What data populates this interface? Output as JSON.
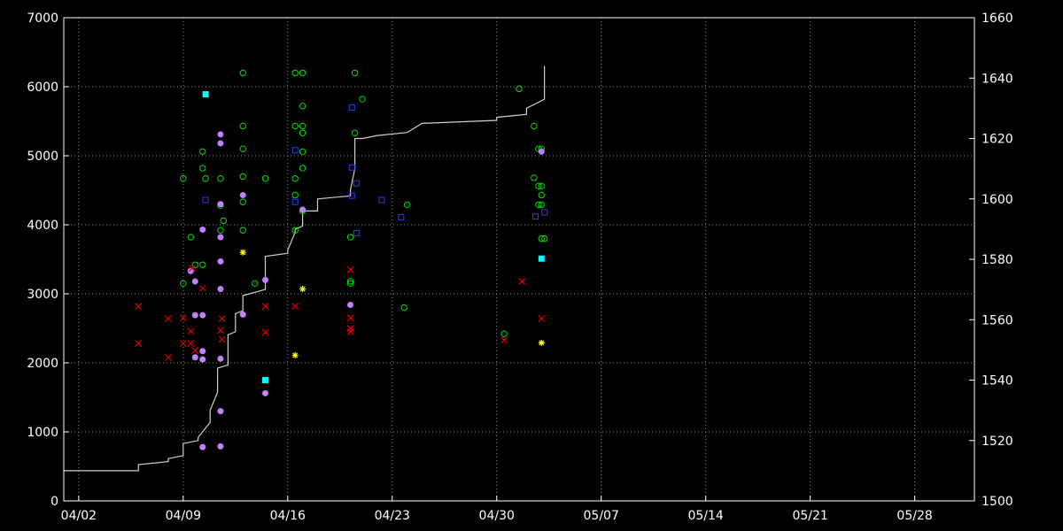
{
  "chart_data": {
    "type": "scatter",
    "title": "",
    "xlabel": "",
    "ylabel": "",
    "y2label": "",
    "background": "#000000",
    "grid": true,
    "legend": "none",
    "x_axis": {
      "type": "date",
      "range": [
        "04/01",
        "06/01"
      ],
      "ticks": [
        "04/02",
        "04/09",
        "04/16",
        "04/23",
        "04/30",
        "05/07",
        "05/14",
        "05/21",
        "05/28"
      ]
    },
    "y_left": {
      "range": [
        0,
        7000
      ],
      "ticks": [
        "0",
        "1000",
        "2000",
        "3000",
        "4000",
        "5000",
        "6000",
        "7000"
      ]
    },
    "y_right": {
      "range": [
        1500,
        1660
      ],
      "ticks": [
        "1500",
        "1520",
        "1540",
        "1560",
        "1580",
        "1600",
        "1620",
        "1640",
        "1660"
      ]
    },
    "rating_line": {
      "axis": "right",
      "color": "#d0d0d0",
      "points": [
        [
          "04/01",
          1510
        ],
        [
          "04/06",
          1510
        ],
        [
          "04/06",
          1512
        ],
        [
          "04/08",
          1513
        ],
        [
          "04/08",
          1514
        ],
        [
          "04/09",
          1515
        ],
        [
          "04/09",
          1519
        ],
        [
          "04/10",
          1520
        ],
        [
          "04/10",
          1521
        ],
        [
          "04/10.8",
          1526
        ],
        [
          "04/10.8",
          1530
        ],
        [
          "04/11.3",
          1536
        ],
        [
          "04/11.3",
          1544
        ],
        [
          "04/12",
          1545
        ],
        [
          "04/12",
          1555
        ],
        [
          "04/12.5",
          1556
        ],
        [
          "04/12.5",
          1562
        ],
        [
          "04/13",
          1563
        ],
        [
          "04/13",
          1568
        ],
        [
          "04/14.5",
          1570
        ],
        [
          "04/14.5",
          1581
        ],
        [
          "04/16",
          1582
        ],
        [
          "04/16",
          1583
        ],
        [
          "04/16.5",
          1589
        ],
        [
          "04/16.5",
          1590
        ],
        [
          "04/17",
          1591
        ],
        [
          "04/17",
          1596
        ],
        [
          "04/18",
          1596
        ],
        [
          "04/18",
          1600
        ],
        [
          "04/20.2",
          1601
        ],
        [
          "04/20.2",
          1603
        ],
        [
          "04/20.5",
          1610
        ],
        [
          "04/20.5",
          1620
        ],
        [
          "04/21",
          1620
        ],
        [
          "04/22",
          1621
        ],
        [
          "04/24",
          1622
        ],
        [
          "04/25",
          1625
        ],
        [
          "04/30",
          1626
        ],
        [
          "04/30",
          1627
        ],
        [
          "05/02",
          1628
        ],
        [
          "05/02",
          1630
        ],
        [
          "05/03.2",
          1633
        ],
        [
          "05/03.2",
          1644
        ]
      ]
    },
    "series": [
      {
        "marker": "open-circle",
        "color": "#00e000",
        "axis": "left",
        "points": [
          [
            "04/13",
            6200
          ],
          [
            "04/16.5",
            6200
          ],
          [
            "04/17",
            6200
          ],
          [
            "04/20.5",
            6200
          ],
          [
            "04/21",
            5820
          ],
          [
            "04/13",
            5430
          ],
          [
            "04/16.5",
            5430
          ],
          [
            "04/17",
            5430
          ],
          [
            "04/20.5",
            5330
          ],
          [
            "04/17",
            5720
          ],
          [
            "04/17",
            5330
          ],
          [
            "04/17",
            5060
          ],
          [
            "04/13",
            5100
          ],
          [
            "04/10.3",
            5060
          ],
          [
            "04/10.3",
            4820
          ],
          [
            "04/17",
            4820
          ],
          [
            "04/09",
            4670
          ],
          [
            "04/10.5",
            4670
          ],
          [
            "04/11.5",
            4670
          ],
          [
            "04/13",
            4700
          ],
          [
            "04/14.5",
            4670
          ],
          [
            "04/16.5",
            4670
          ],
          [
            "04/16.5",
            4430
          ],
          [
            "04/13",
            4330
          ],
          [
            "04/11.5",
            4280
          ],
          [
            "04/11.7",
            4060
          ],
          [
            "04/11.5",
            3920
          ],
          [
            "04/13",
            3920
          ],
          [
            "04/16.5",
            3920
          ],
          [
            "04/17",
            4200
          ],
          [
            "04/09.5",
            3820
          ],
          [
            "04/20.2",
            3820
          ],
          [
            "04/09.8",
            3420
          ],
          [
            "04/10.3",
            3420
          ],
          [
            "04/09",
            3150
          ],
          [
            "04/13.8",
            3150
          ],
          [
            "04/20.2",
            3150
          ],
          [
            "04/20.2",
            3180
          ],
          [
            "04/24",
            4290
          ],
          [
            "04/23.8",
            2800
          ],
          [
            "04/30.5",
            2420
          ],
          [
            "05/01.5",
            5970
          ],
          [
            "05/02.5",
            5430
          ],
          [
            "05/02.5",
            4680
          ],
          [
            "05/02.8",
            4560
          ],
          [
            "05/03",
            4560
          ],
          [
            "05/03",
            4430
          ],
          [
            "05/02.8",
            4290
          ],
          [
            "05/03",
            4290
          ],
          [
            "05/03",
            3800
          ],
          [
            "05/03.2",
            3800
          ],
          [
            "05/02.8",
            5100
          ],
          [
            "05/03",
            5100
          ]
        ]
      },
      {
        "marker": "filled-circle",
        "color": "#c080ff",
        "axis": "left",
        "points": [
          [
            "04/11.5",
            5310
          ],
          [
            "04/11.5",
            5180
          ],
          [
            "04/13",
            4430
          ],
          [
            "04/11.5",
            4300
          ],
          [
            "04/10.3",
            3930
          ],
          [
            "04/11.5",
            3820
          ],
          [
            "04/11.5",
            3470
          ],
          [
            "04/09.5",
            3330
          ],
          [
            "04/09.8",
            3180
          ],
          [
            "04/14.5",
            3200
          ],
          [
            "04/11.5",
            3070
          ],
          [
            "04/09.8",
            2690
          ],
          [
            "04/10.3",
            2690
          ],
          [
            "04/13",
            2700
          ],
          [
            "04/20.2",
            2840
          ],
          [
            "04/10.3",
            2170
          ],
          [
            "04/09.8",
            2080
          ],
          [
            "04/10.3",
            2050
          ],
          [
            "04/11.5",
            2060
          ],
          [
            "04/14.5",
            1560
          ],
          [
            "04/11.5",
            1300
          ],
          [
            "04/10.3",
            780
          ],
          [
            "04/11.5",
            790
          ],
          [
            "04/17",
            4220
          ],
          [
            "05/03",
            5060
          ]
        ]
      },
      {
        "marker": "open-square",
        "color": "#2040ff",
        "axis": "left",
        "points": [
          [
            "04/20.3",
            5700
          ],
          [
            "04/16.5",
            5080
          ],
          [
            "04/20.3",
            4830
          ],
          [
            "04/20.6",
            4600
          ],
          [
            "04/20.3",
            4420
          ],
          [
            "04/10.5",
            4360
          ],
          [
            "04/16.5",
            4330
          ],
          [
            "04/22.3",
            4360
          ],
          [
            "04/23.6",
            4110
          ],
          [
            "04/20.6",
            3880
          ],
          [
            "05/02.6",
            4120
          ],
          [
            "05/03.2",
            4180
          ]
        ]
      },
      {
        "marker": "x",
        "color": "#e00000",
        "axis": "left",
        "points": [
          [
            "04/06",
            2820
          ],
          [
            "04/08",
            2640
          ],
          [
            "04/09",
            2650
          ],
          [
            "04/06",
            2280
          ],
          [
            "04/09",
            2280
          ],
          [
            "04/09.5",
            2280
          ],
          [
            "04/09.5",
            2460
          ],
          [
            "04/09.6",
            3370
          ],
          [
            "04/10.3",
            3080
          ],
          [
            "04/11.5",
            2470
          ],
          [
            "04/11.6",
            2640
          ],
          [
            "04/11.6",
            2340
          ],
          [
            "04/08",
            2080
          ],
          [
            "04/09.8",
            2180
          ],
          [
            "04/14.5",
            2820
          ],
          [
            "04/14.5",
            2440
          ],
          [
            "04/16.5",
            2820
          ],
          [
            "04/20.2",
            3350
          ],
          [
            "04/20.2",
            2650
          ],
          [
            "04/20.2",
            2500
          ],
          [
            "04/20.2",
            2450
          ],
          [
            "04/30.5",
            2330
          ],
          [
            "05/01.7",
            3180
          ],
          [
            "05/03",
            2640
          ]
        ]
      },
      {
        "marker": "star",
        "color": "#ffff00",
        "axis": "left",
        "points": [
          [
            "04/13",
            3600
          ],
          [
            "04/17",
            3070
          ],
          [
            "04/16.5",
            2110
          ],
          [
            "05/03",
            2290
          ]
        ]
      },
      {
        "marker": "filled-square",
        "color": "#00ffff",
        "axis": "left",
        "points": [
          [
            "04/10.5",
            5890
          ],
          [
            "04/14.5",
            1750
          ],
          [
            "05/03",
            3510
          ]
        ]
      }
    ]
  }
}
